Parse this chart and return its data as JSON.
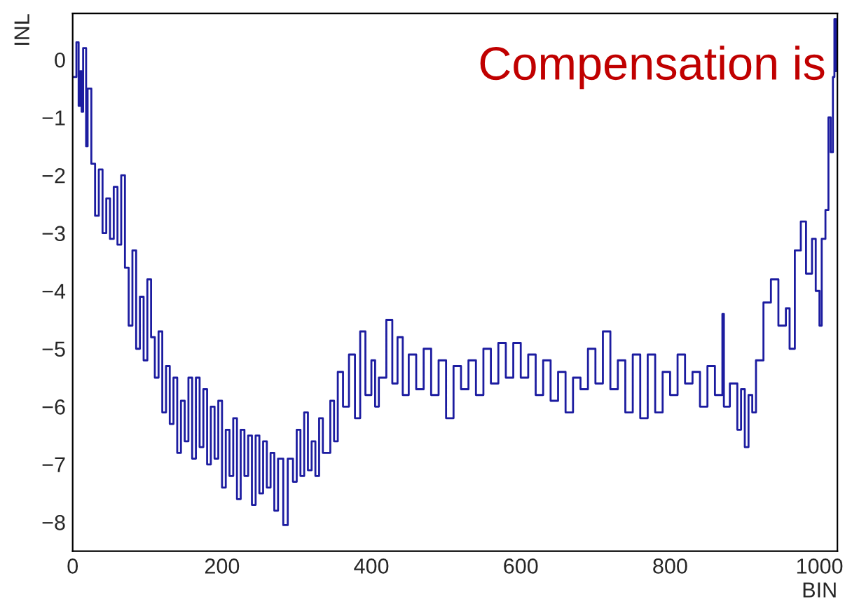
{
  "chart_data": {
    "type": "step",
    "xlabel": "BIN",
    "ylabel": "INL",
    "annotations": [
      "Compensation is"
    ],
    "xlim": [
      0,
      1024
    ],
    "xticks": [
      0,
      200,
      400,
      600,
      800,
      1000
    ],
    "ylim": [
      -8.5,
      0.8
    ],
    "yticks": [
      {
        "value": 0,
        "label": "0"
      },
      {
        "value": -1,
        "label": "−1"
      },
      {
        "value": -2,
        "label": "−2"
      },
      {
        "value": -3,
        "label": "−3"
      },
      {
        "value": -4,
        "label": "−4"
      },
      {
        "value": -5,
        "label": "−5"
      },
      {
        "value": -6,
        "label": "−6"
      },
      {
        "value": -7,
        "label": "−7"
      },
      {
        "value": -8,
        "label": "−8"
      }
    ],
    "grid": false,
    "series": [
      {
        "color": "#1c1ca0",
        "x": [
          0,
          5,
          8,
          10,
          12,
          14,
          18,
          20,
          25,
          30,
          35,
          40,
          45,
          50,
          55,
          60,
          65,
          70,
          75,
          80,
          85,
          90,
          95,
          100,
          105,
          110,
          115,
          120,
          125,
          130,
          135,
          140,
          145,
          150,
          155,
          160,
          165,
          170,
          175,
          180,
          185,
          190,
          195,
          200,
          205,
          210,
          215,
          220,
          225,
          230,
          235,
          240,
          245,
          250,
          255,
          260,
          265,
          270,
          275,
          282,
          288,
          295,
          300,
          305,
          310,
          315,
          320,
          325,
          330,
          335,
          345,
          350,
          355,
          362,
          370,
          378,
          385,
          392,
          400,
          405,
          410,
          420,
          428,
          435,
          442,
          450,
          460,
          470,
          480,
          490,
          500,
          510,
          520,
          530,
          540,
          550,
          560,
          570,
          580,
          590,
          600,
          610,
          620,
          630,
          640,
          650,
          660,
          670,
          680,
          690,
          700,
          710,
          720,
          730,
          740,
          750,
          760,
          770,
          780,
          790,
          800,
          810,
          820,
          830,
          840,
          850,
          860,
          870,
          872,
          880,
          890,
          895,
          900,
          905,
          910,
          915,
          925,
          935,
          945,
          955,
          960,
          967,
          975,
          982,
          990,
          995,
          1000,
          1003,
          1008,
          1012,
          1015,
          1018,
          1020,
          1022
        ],
        "values": [
          -0.3,
          0.3,
          -0.8,
          -0.2,
          -0.9,
          0.2,
          -1.5,
          -0.5,
          -1.8,
          -2.7,
          -1.9,
          -3.0,
          -2.4,
          -3.1,
          -2.2,
          -3.2,
          -2.0,
          -3.6,
          -4.6,
          -3.3,
          -5.0,
          -4.1,
          -5.2,
          -3.8,
          -4.8,
          -5.5,
          -4.7,
          -6.1,
          -5.3,
          -6.3,
          -5.5,
          -6.8,
          -5.9,
          -6.6,
          -5.5,
          -6.9,
          -5.5,
          -6.7,
          -5.7,
          -7.0,
          -6.0,
          -6.9,
          -5.9,
          -7.4,
          -6.4,
          -7.2,
          -6.2,
          -7.6,
          -6.4,
          -7.2,
          -6.5,
          -7.7,
          -6.5,
          -7.5,
          -6.6,
          -7.4,
          -6.8,
          -7.8,
          -6.9,
          -8.05,
          -6.9,
          -7.3,
          -6.4,
          -7.2,
          -6.1,
          -7.1,
          -6.6,
          -7.2,
          -6.2,
          -6.8,
          -5.9,
          -6.6,
          -5.4,
          -6.0,
          -5.1,
          -6.2,
          -4.7,
          -5.8,
          -5.2,
          -6.0,
          -5.5,
          -4.5,
          -5.6,
          -4.8,
          -5.8,
          -5.1,
          -5.7,
          -5.0,
          -5.8,
          -5.2,
          -6.2,
          -5.3,
          -5.7,
          -5.2,
          -5.8,
          -5.0,
          -5.6,
          -4.9,
          -5.5,
          -4.9,
          -5.5,
          -5.1,
          -5.8,
          -5.2,
          -5.9,
          -5.4,
          -6.1,
          -5.5,
          -5.7,
          -5.0,
          -5.6,
          -4.7,
          -5.7,
          -5.2,
          -6.1,
          -5.1,
          -6.2,
          -5.1,
          -6.1,
          -5.4,
          -5.8,
          -5.1,
          -5.6,
          -5.4,
          -6.0,
          -5.3,
          -5.8,
          -4.4,
          -6.0,
          -5.6,
          -6.4,
          -5.7,
          -6.7,
          -5.8,
          -6.1,
          -5.2,
          -4.2,
          -3.8,
          -4.6,
          -4.3,
          -5.0,
          -3.3,
          -2.8,
          -3.7,
          -3.1,
          -4.0,
          -4.6,
          -3.1,
          -2.6,
          -1.0,
          -1.6,
          -0.3,
          0.7,
          -0.2
        ]
      }
    ]
  }
}
